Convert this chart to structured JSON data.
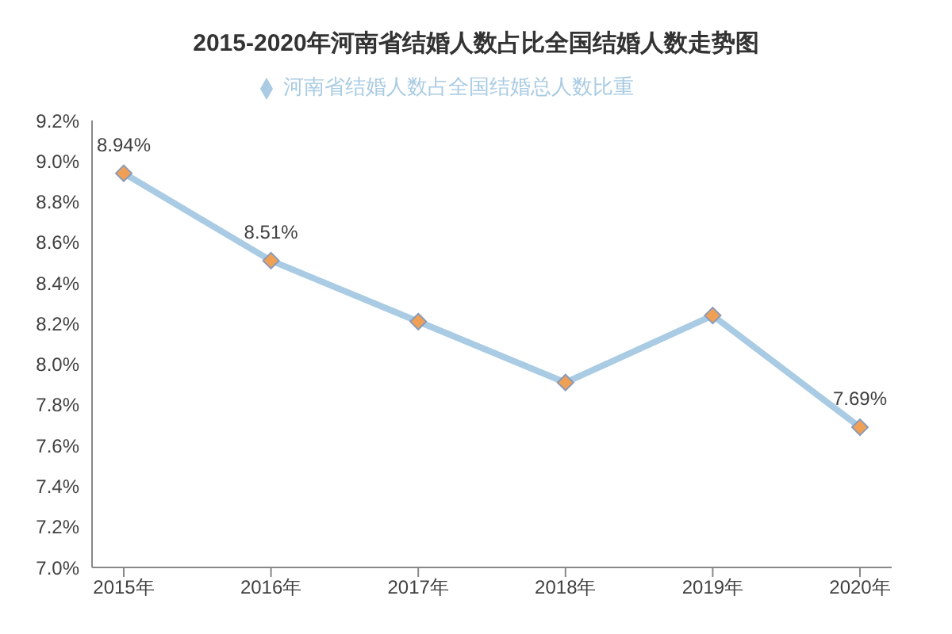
{
  "chart_data": {
    "type": "line",
    "title": "2015-2020年河南省结婚人数占比全国结婚人数走势图",
    "categories": [
      "2015年",
      "2016年",
      "2017年",
      "2018年",
      "2019年",
      "2020年"
    ],
    "series": [
      {
        "name": "河南省结婚人数占全国结婚总人数比重",
        "color": "#a9cbe3",
        "values": [
          8.94,
          8.51,
          8.21,
          7.91,
          8.24,
          7.69
        ],
        "value_labels": [
          "8.94%",
          "8.51%",
          null,
          null,
          null,
          "7.69%"
        ]
      }
    ],
    "ylim": [
      7.0,
      9.2
    ],
    "yticks": [
      {
        "value": 7.0,
        "label": "7.0%"
      },
      {
        "value": 7.2,
        "label": "7.2%"
      },
      {
        "value": 7.4,
        "label": "7.4%"
      },
      {
        "value": 7.6,
        "label": "7.6%"
      },
      {
        "value": 7.8,
        "label": "7.8%"
      },
      {
        "value": 8.0,
        "label": "8.0%"
      },
      {
        "value": 8.2,
        "label": "8.2%"
      },
      {
        "value": 8.4,
        "label": "8.4%"
      },
      {
        "value": 8.6,
        "label": "8.6%"
      },
      {
        "value": 8.8,
        "label": "8.8%"
      },
      {
        "value": 9.0,
        "label": "9.0%"
      },
      {
        "value": 9.2,
        "label": "9.2%"
      }
    ],
    "grid": false,
    "legend": "top",
    "marker": "diamond",
    "line_style": "solid"
  }
}
